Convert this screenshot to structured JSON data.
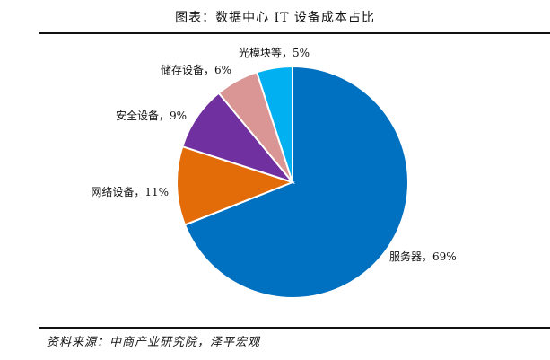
{
  "title": "图表：数据中心 IT 设备成本占比",
  "source": "资料来源：中商产业研究院，泽平宏观",
  "chart_data": {
    "type": "pie",
    "title": "图表：数据中心 IT 设备成本占比",
    "slices": [
      {
        "name": "服务器",
        "value": 69,
        "label": "服务器，69%",
        "color": "#0070c0"
      },
      {
        "name": "网络设备",
        "value": 11,
        "label": "网络设备，11%",
        "color": "#e36c09"
      },
      {
        "name": "安全设备",
        "value": 9,
        "label": "安全设备，9%",
        "color": "#7030a0"
      },
      {
        "name": "储存设备",
        "value": 6,
        "label": "储存设备，6%",
        "color": "#da9694"
      },
      {
        "name": "光模块等",
        "value": 5,
        "label": "光模块等，5%",
        "color": "#00b0f0"
      }
    ],
    "start": "12 o'clock",
    "direction": "clockwise",
    "legend": "none (labels beside slices)"
  }
}
